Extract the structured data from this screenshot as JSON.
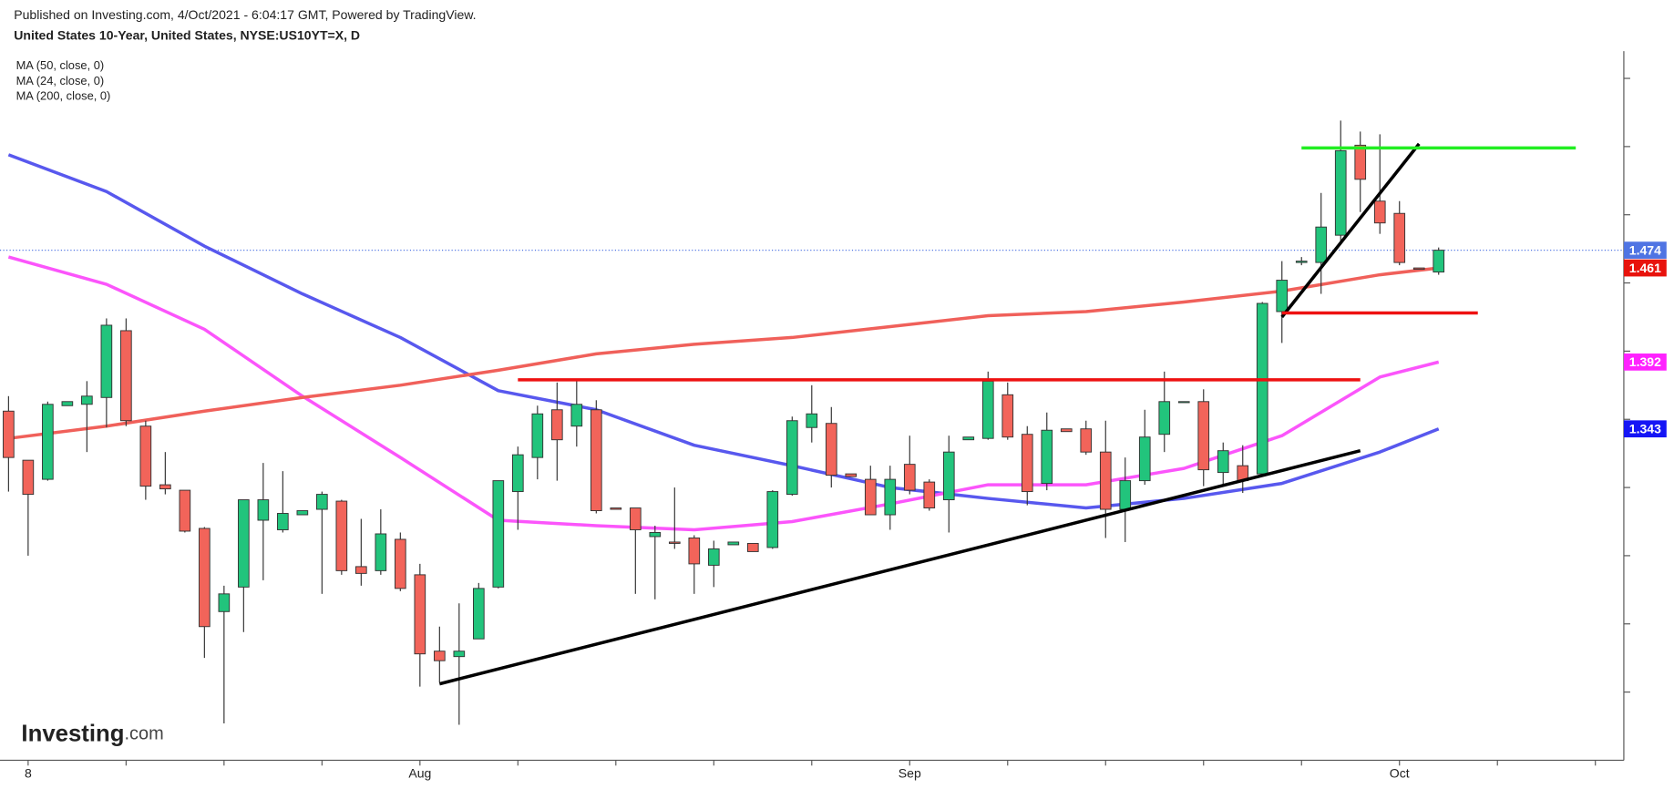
{
  "chart_data": {
    "type": "candlestick",
    "header_note": "Published on Investing.com, 4/Oct/2021 - 6:04:17 GMT, Powered by TradingView.",
    "title": "United States 10-Year, United States, NYSE:US10YT=X, D",
    "logo": {
      "main": "Investing",
      "suffix": ".com"
    },
    "categories": [
      null,
      "8",
      null,
      null,
      null,
      null,
      null,
      null,
      null,
      null,
      null,
      null,
      null,
      null,
      null,
      null,
      null,
      null,
      null,
      null,
      null,
      "Aug",
      null,
      null,
      null,
      null,
      null,
      null,
      null,
      null,
      null,
      null,
      null,
      null,
      null,
      null,
      null,
      null,
      null,
      null,
      null,
      null,
      null,
      null,
      null,
      null,
      "Sep",
      null,
      null,
      null,
      null,
      null,
      null,
      null,
      null,
      null,
      null,
      null,
      null,
      null,
      null,
      null,
      null,
      null,
      null,
      null,
      null,
      null,
      null,
      null,
      null,
      "Oct",
      null,
      null
    ],
    "open": [
      1.356,
      1.32,
      1.306,
      1.36,
      1.361,
      1.366,
      1.415,
      1.345,
      1.302,
      1.298,
      1.27,
      1.209,
      1.227,
      1.276,
      1.269,
      1.28,
      1.284,
      1.29,
      1.242,
      1.239,
      1.262,
      1.236,
      1.18,
      1.176,
      1.189,
      1.227,
      1.297,
      1.322,
      1.357,
      1.345,
      1.357,
      1.285,
      1.285,
      1.264,
      1.26,
      1.263,
      1.243,
      1.258,
      1.259,
      1.256,
      1.295,
      1.344,
      1.347,
      1.31,
      1.306,
      1.28,
      1.317,
      1.304,
      1.291,
      1.335,
      1.336,
      1.368,
      1.339,
      1.303,
      1.343,
      1.343,
      1.326,
      1.284,
      1.305,
      1.339,
      1.363,
      1.363,
      1.311,
      1.316,
      1.31,
      1.429,
      1.465,
      1.465,
      1.485,
      1.551,
      1.51,
      1.501,
      1.461,
      1.458
    ],
    "high": [
      1.367,
      1.32,
      1.363,
      1.363,
      1.378,
      1.424,
      1.424,
      1.349,
      1.326,
      1.298,
      1.271,
      1.228,
      1.291,
      1.318,
      1.312,
      1.283,
      1.297,
      1.291,
      1.277,
      1.284,
      1.267,
      1.244,
      1.198,
      1.215,
      1.23,
      1.305,
      1.33,
      1.36,
      1.377,
      1.378,
      1.364,
      1.285,
      1.285,
      1.272,
      1.3,
      1.265,
      1.261,
      1.26,
      1.259,
      1.298,
      1.352,
      1.375,
      1.359,
      1.31,
      1.316,
      1.316,
      1.338,
      1.306,
      1.338,
      1.337,
      1.385,
      1.377,
      1.345,
      1.355,
      1.343,
      1.349,
      1.349,
      1.322,
      1.357,
      1.385,
      1.363,
      1.372,
      1.333,
      1.331,
      1.436,
      1.466,
      1.469,
      1.516,
      1.569,
      1.561,
      1.559,
      1.51,
      1.461,
      1.476
    ],
    "low": [
      1.297,
      1.25,
      1.305,
      1.36,
      1.326,
      1.344,
      1.345,
      1.291,
      1.295,
      1.267,
      1.175,
      1.127,
      1.194,
      1.232,
      1.267,
      1.28,
      1.222,
      1.236,
      1.228,
      1.236,
      1.224,
      1.154,
      1.157,
      1.126,
      1.189,
      1.226,
      1.269,
      1.306,
      1.305,
      1.33,
      1.281,
      1.284,
      1.222,
      1.218,
      1.255,
      1.222,
      1.227,
      1.258,
      1.253,
      1.255,
      1.294,
      1.333,
      1.3,
      1.308,
      1.28,
      1.269,
      1.295,
      1.283,
      1.267,
      1.335,
      1.335,
      1.335,
      1.287,
      1.298,
      1.341,
      1.324,
      1.263,
      1.26,
      1.302,
      1.326,
      1.363,
      1.301,
      1.302,
      1.296,
      1.309,
      1.406,
      1.463,
      1.442,
      1.48,
      1.502,
      1.486,
      1.463,
      1.46,
      1.456
    ],
    "close": [
      1.322,
      1.295,
      1.361,
      1.363,
      1.367,
      1.419,
      1.349,
      1.301,
      1.299,
      1.268,
      1.198,
      1.222,
      1.291,
      1.291,
      1.281,
      1.283,
      1.295,
      1.239,
      1.237,
      1.266,
      1.226,
      1.178,
      1.173,
      1.18,
      1.226,
      1.305,
      1.324,
      1.354,
      1.335,
      1.361,
      1.283,
      1.284,
      1.269,
      1.267,
      1.259,
      1.244,
      1.255,
      1.26,
      1.253,
      1.297,
      1.349,
      1.354,
      1.309,
      1.308,
      1.28,
      1.306,
      1.298,
      1.285,
      1.326,
      1.337,
      1.378,
      1.337,
      1.297,
      1.342,
      1.341,
      1.326,
      1.284,
      1.305,
      1.337,
      1.363,
      1.363,
      1.313,
      1.327,
      1.305,
      1.435,
      1.452,
      1.466,
      1.491,
      1.547,
      1.526,
      1.494,
      1.465,
      1.46,
      1.474
    ],
    "up_color": "#22c47c",
    "down_color": "#f2645a",
    "series": [
      {
        "name": "MA (50, close, 0)",
        "color": "#5858ee",
        "x": [
          0,
          5,
          10,
          15,
          20,
          25,
          30,
          35,
          40,
          45,
          50,
          55,
          60,
          65,
          70,
          73
        ],
        "values": [
          1.544,
          1.517,
          1.477,
          1.442,
          1.41,
          1.371,
          1.357,
          1.331,
          1.316,
          1.3,
          1.292,
          1.285,
          1.292,
          1.303,
          1.326,
          1.343
        ]
      },
      {
        "name": "MA (24, close, 0)",
        "color": "#fb55fb",
        "x": [
          0,
          5,
          10,
          15,
          20,
          25,
          30,
          35,
          40,
          45,
          50,
          55,
          60,
          65,
          70,
          73
        ],
        "values": [
          1.469,
          1.449,
          1.416,
          1.367,
          1.322,
          1.276,
          1.272,
          1.269,
          1.275,
          1.288,
          1.302,
          1.302,
          1.314,
          1.338,
          1.381,
          1.392
        ]
      },
      {
        "name": "MA (200, close, 0)",
        "color": "#f0605a",
        "x": [
          0,
          5,
          10,
          15,
          20,
          25,
          30,
          35,
          40,
          45,
          50,
          55,
          60,
          65,
          70,
          73
        ],
        "values": [
          1.336,
          1.345,
          1.356,
          1.366,
          1.375,
          1.386,
          1.398,
          1.405,
          1.41,
          1.418,
          1.426,
          1.429,
          1.436,
          1.444,
          1.456,
          1.461
        ]
      }
    ],
    "drawings": [
      {
        "color": "#000000",
        "x": [
          22,
          69
        ],
        "values": [
          1.156,
          1.327
        ]
      },
      {
        "color": "#000000",
        "x": [
          65,
          72
        ],
        "values": [
          1.425,
          1.552
        ]
      },
      {
        "color": "#ee1111",
        "x": [
          26,
          69
        ],
        "values": [
          1.379,
          1.379
        ]
      },
      {
        "color": "#ee1111",
        "x": [
          65,
          75
        ],
        "values": [
          1.428,
          1.428
        ]
      },
      {
        "color": "#22ee22",
        "x": [
          66,
          80
        ],
        "values": [
          1.549,
          1.549
        ]
      }
    ],
    "price_labels": [
      {
        "value": 1.474,
        "color": "#4f74e3"
      },
      {
        "value": 1.461,
        "color": "#e8120c"
      },
      {
        "value": 1.392,
        "color": "#ff22ff"
      },
      {
        "value": 1.343,
        "color": "#1515f5"
      }
    ],
    "ylim": [
      1.1,
      1.62
    ],
    "yticks": [
      1.15,
      1.2,
      1.25,
      1.3,
      1.35,
      1.4,
      1.45,
      1.5,
      1.55,
      1.6
    ]
  }
}
